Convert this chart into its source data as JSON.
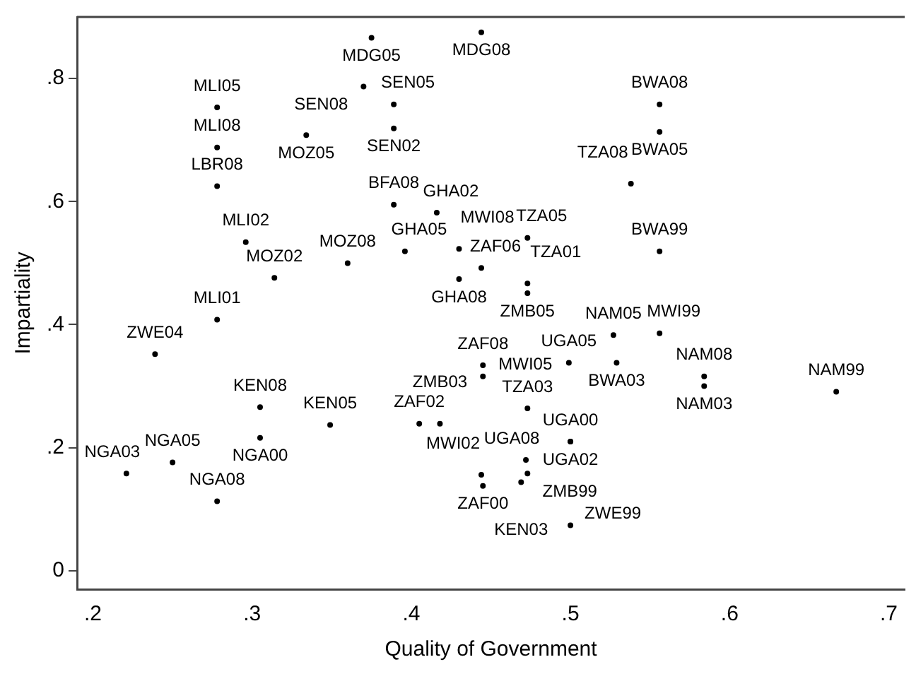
{
  "chart_data": {
    "type": "scatter",
    "xlabel": "Quality of Government",
    "ylabel": "Impartiality",
    "marker": "circle",
    "grid": false,
    "legend": false,
    "xlim": [
      0.19,
      0.71
    ],
    "ylim": [
      -0.03,
      0.9
    ],
    "xticks": [
      {
        "value": 0.2,
        "label": ".2"
      },
      {
        "value": 0.3,
        "label": ".3"
      },
      {
        "value": 0.4,
        "label": ".4"
      },
      {
        "value": 0.5,
        "label": ".5"
      },
      {
        "value": 0.6,
        "label": ".6"
      },
      {
        "value": 0.7,
        "label": ".7"
      }
    ],
    "yticks": [
      0,
      {
        "value": 0.2,
        "label": ".2"
      },
      {
        "value": 0.4,
        "label": ".4"
      },
      {
        "value": 0.6,
        "label": ".6"
      },
      {
        "value": 0.8,
        "label": ".8"
      }
    ],
    "series": [
      {
        "color": "#000000",
        "x": [
          0.375,
          0.37,
          0.389,
          0.389,
          0.278,
          0.334,
          0.278,
          0.278,
          0.389,
          0.296,
          0.36,
          0.314,
          0.278,
          0.396,
          0.416,
          0.43,
          0.43,
          0.444,
          0.473,
          0.473,
          0.473,
          0.444,
          0.556,
          0.556,
          0.538,
          0.556,
          0.239,
          0.305,
          0.305,
          0.349,
          0.25,
          0.221,
          0.278,
          0.405,
          0.418,
          0.445,
          0.445,
          0.527,
          0.556,
          0.499,
          0.529,
          0.584,
          0.584,
          0.667,
          0.473,
          0.5,
          0.5,
          0.472,
          0.473,
          0.444,
          0.445,
          0.469,
          0.5
        ],
        "values": [
          0.866,
          0.787,
          0.758,
          0.719,
          0.753,
          0.708,
          0.688,
          0.625,
          0.595,
          0.534,
          0.5,
          0.476,
          0.408,
          0.519,
          0.582,
          0.523,
          0.474,
          0.492,
          0.541,
          0.467,
          0.451,
          0.875,
          0.758,
          0.713,
          0.629,
          0.519,
          0.352,
          0.266,
          0.216,
          0.237,
          0.176,
          0.158,
          0.113,
          0.239,
          0.239,
          0.334,
          0.316,
          0.383,
          0.386,
          0.338,
          0.338,
          0.316,
          0.3,
          0.291,
          0.264,
          0.21,
          0.21,
          0.18,
          0.158,
          0.156,
          0.138,
          0.144,
          0.074
        ],
        "value_labels": [
          "MDG05",
          "SEN08",
          "SEN05",
          "SEN02",
          "MLI05",
          "MOZ05",
          "MLI08",
          "LBR08",
          "BFA08",
          "MLI02",
          "MOZ08",
          "MOZ02",
          "MLI01",
          "GHA05",
          "GHA02",
          "MWI08",
          "GHA08",
          "ZAF06",
          "TZA05",
          "TZA01",
          "ZMB05",
          "MDG08",
          "BWA08",
          "BWA05",
          "TZA08",
          "BWA99",
          "ZWE04",
          "KEN08",
          "NGA00",
          "KEN05",
          "NGA05",
          "NGA03",
          "NGA08",
          "ZAF02",
          "ZMB03",
          "ZAF08",
          "MWI05",
          "NAM05",
          "MWI99",
          "UGA05",
          "BWA03",
          "NAM08",
          "NAM03",
          "NAM99",
          "TZA03",
          "UGA00",
          "UGA02",
          "UGA08",
          "ZMB99",
          "MWI02",
          "ZAF00",
          "KEN03",
          "ZWE99"
        ]
      }
    ]
  }
}
